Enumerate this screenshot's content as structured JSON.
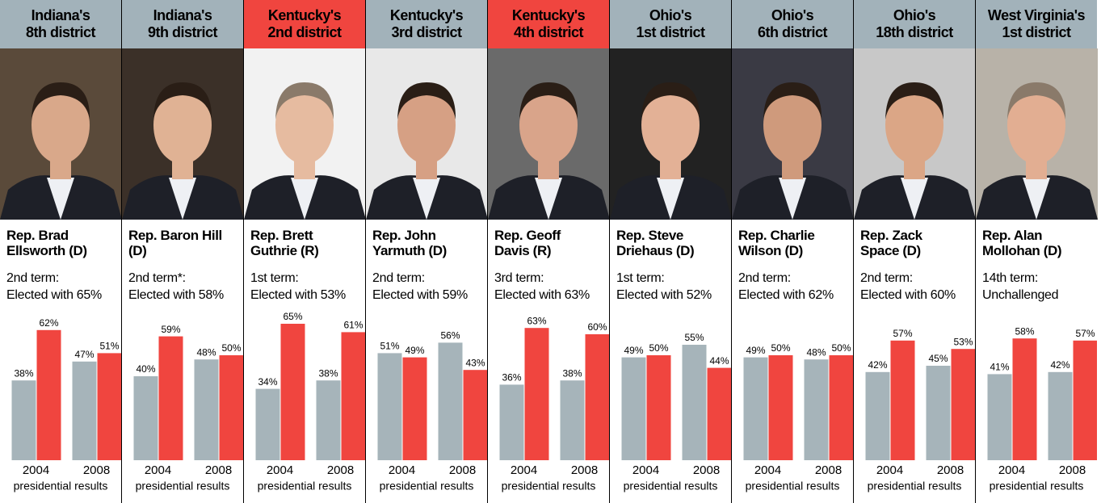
{
  "chart_data": [
    {
      "type": "bar",
      "title": "Indiana's\n8th district",
      "title_background": "#a2b2ba",
      "rep": "Rep. Brad\nEllsworth (D)",
      "term": "2nd term:",
      "result": "Elected with 65%",
      "categories": [
        "2004",
        "2008"
      ],
      "x_label": "presidential results",
      "ylim": [
        0,
        70
      ],
      "series": [
        {
          "color": "#a6b4ba",
          "values": [
            38,
            47
          ],
          "value_labels": [
            "38%",
            "47%"
          ]
        },
        {
          "color": "#f0453f",
          "values": [
            62,
            51
          ],
          "value_labels": [
            "62%",
            "51%"
          ]
        }
      ]
    },
    {
      "type": "bar",
      "title": "Indiana's\n9th district",
      "title_background": "#a2b2ba",
      "rep": "Rep. Baron Hill\n(D)",
      "term": "2nd term*:",
      "result": "Elected with 58%",
      "categories": [
        "2004",
        "2008"
      ],
      "x_label": "presidential results",
      "ylim": [
        0,
        70
      ],
      "series": [
        {
          "color": "#a6b4ba",
          "values": [
            40,
            48
          ],
          "value_labels": [
            "40%",
            "48%"
          ]
        },
        {
          "color": "#f0453f",
          "values": [
            59,
            50
          ],
          "value_labels": [
            "59%",
            "50%"
          ]
        }
      ]
    },
    {
      "type": "bar",
      "title": "Kentucky's\n2nd district",
      "title_background": "#f0453f",
      "rep": "Rep. Brett\nGuthrie (R)",
      "term": "1st term:",
      "result": "Elected with 53%",
      "categories": [
        "2004",
        "2008"
      ],
      "x_label": "presidential results",
      "ylim": [
        0,
        70
      ],
      "series": [
        {
          "color": "#a6b4ba",
          "values": [
            34,
            38
          ],
          "value_labels": [
            "34%",
            "38%"
          ]
        },
        {
          "color": "#f0453f",
          "values": [
            65,
            61
          ],
          "value_labels": [
            "65%",
            "61%"
          ]
        }
      ]
    },
    {
      "type": "bar",
      "title": "Kentucky's\n3rd district",
      "title_background": "#a2b2ba",
      "rep": "Rep. John\nYarmuth (D)",
      "term": "2nd term:",
      "result": "Elected with 59%",
      "categories": [
        "2004",
        "2008"
      ],
      "x_label": "presidential results",
      "ylim": [
        0,
        70
      ],
      "series": [
        {
          "color": "#a6b4ba",
          "values": [
            51,
            56
          ],
          "value_labels": [
            "51%",
            "56%"
          ]
        },
        {
          "color": "#f0453f",
          "values": [
            49,
            43
          ],
          "value_labels": [
            "49%",
            "43%"
          ]
        }
      ]
    },
    {
      "type": "bar",
      "title": "Kentucky's\n4th district",
      "title_background": "#f0453f",
      "rep": "Rep. Geoff\nDavis (R)",
      "term": "3rd term:",
      "result": "Elected with 63%",
      "categories": [
        "2004",
        "2008"
      ],
      "x_label": "presidential results",
      "ylim": [
        0,
        70
      ],
      "series": [
        {
          "color": "#a6b4ba",
          "values": [
            36,
            38
          ],
          "value_labels": [
            "36%",
            "38%"
          ]
        },
        {
          "color": "#f0453f",
          "values": [
            63,
            60
          ],
          "value_labels": [
            "63%",
            "60%"
          ]
        }
      ]
    },
    {
      "type": "bar",
      "title": "Ohio's\n1st district",
      "title_background": "#a2b2ba",
      "rep": "Rep. Steve\nDriehaus (D)",
      "term": "1st term:",
      "result": "Elected with 52%",
      "categories": [
        "2004",
        "2008"
      ],
      "x_label": "presidential results",
      "ylim": [
        0,
        70
      ],
      "series": [
        {
          "color": "#a6b4ba",
          "values": [
            49,
            55
          ],
          "value_labels": [
            "49%",
            "55%"
          ]
        },
        {
          "color": "#f0453f",
          "values": [
            50,
            44
          ],
          "value_labels": [
            "50%",
            "44%"
          ]
        }
      ]
    },
    {
      "type": "bar",
      "title": "Ohio's\n6th district",
      "title_background": "#a2b2ba",
      "rep": "Rep. Charlie\nWilson (D)",
      "term": "2nd term:",
      "result": "Elected with 62%",
      "categories": [
        "2004",
        "2008"
      ],
      "x_label": "presidential results",
      "ylim": [
        0,
        70
      ],
      "series": [
        {
          "color": "#a6b4ba",
          "values": [
            49,
            48
          ],
          "value_labels": [
            "49%",
            "48%"
          ]
        },
        {
          "color": "#f0453f",
          "values": [
            50,
            50
          ],
          "value_labels": [
            "50%",
            "50%"
          ]
        }
      ]
    },
    {
      "type": "bar",
      "title": "Ohio's\n18th district",
      "title_background": "#a2b2ba",
      "rep": "Rep. Zack\nSpace (D)",
      "term": "2nd term:",
      "result": "Elected with 60%",
      "categories": [
        "2004",
        "2008"
      ],
      "x_label": "presidential results",
      "ylim": [
        0,
        70
      ],
      "series": [
        {
          "color": "#a6b4ba",
          "values": [
            42,
            45
          ],
          "value_labels": [
            "42%",
            "45%"
          ]
        },
        {
          "color": "#f0453f",
          "values": [
            57,
            53
          ],
          "value_labels": [
            "57%",
            "53%"
          ]
        }
      ]
    },
    {
      "type": "bar",
      "title": "West Virginia's\n1st district",
      "title_background": "#a2b2ba",
      "rep": "Rep. Alan\nMollohan (D)",
      "term": "14th term:",
      "result": "Unchallenged",
      "categories": [
        "2004",
        "2008"
      ],
      "x_label": "presidential results",
      "ylim": [
        0,
        70
      ],
      "series": [
        {
          "color": "#a6b4ba",
          "values": [
            41,
            42
          ],
          "value_labels": [
            "41%",
            "42%"
          ]
        },
        {
          "color": "#f0453f",
          "values": [
            58,
            57
          ],
          "value_labels": [
            "58%",
            "57%"
          ]
        }
      ]
    }
  ]
}
